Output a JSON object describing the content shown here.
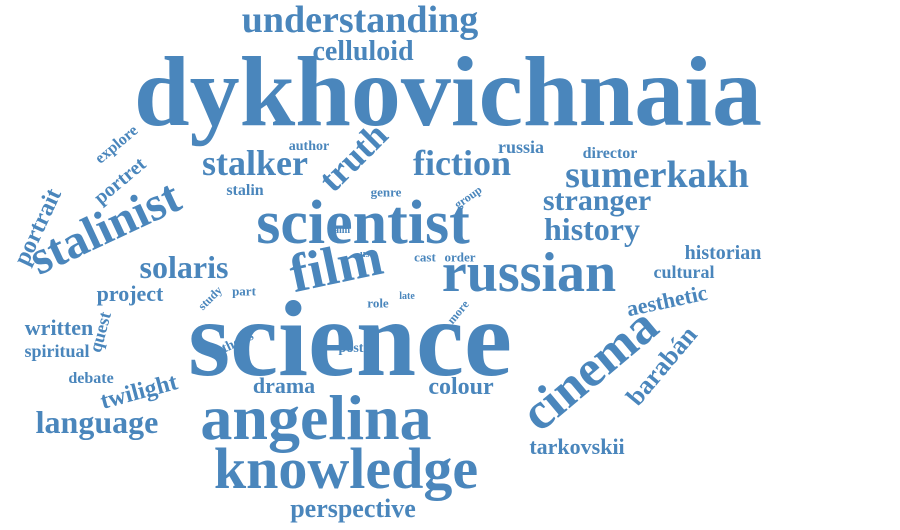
{
  "cloud": {
    "color": "#4a86bc",
    "words": [
      "dykhovichnaia",
      "science",
      "scientist",
      "angelina",
      "russian",
      "knowledge",
      "film",
      "cinema",
      "stalinist",
      "understanding",
      "sumerkakh",
      "stalker",
      "fiction",
      "truth",
      "history",
      "stranger",
      "language",
      "solaris",
      "celluloid",
      "barabán",
      "twilight",
      "perspective",
      "colour",
      "aesthetic",
      "historian",
      "drama",
      "tarkovskii",
      "portrait",
      "project",
      "portret",
      "written",
      "cultural",
      "russia",
      "spiritual",
      "quest",
      "director",
      "debate",
      "stalin",
      "explore",
      "post",
      "author",
      "thesis",
      "genre",
      "cast",
      "order",
      "part",
      "role",
      "study",
      "group",
      "more",
      "aim",
      "use",
      "late"
    ]
  }
}
